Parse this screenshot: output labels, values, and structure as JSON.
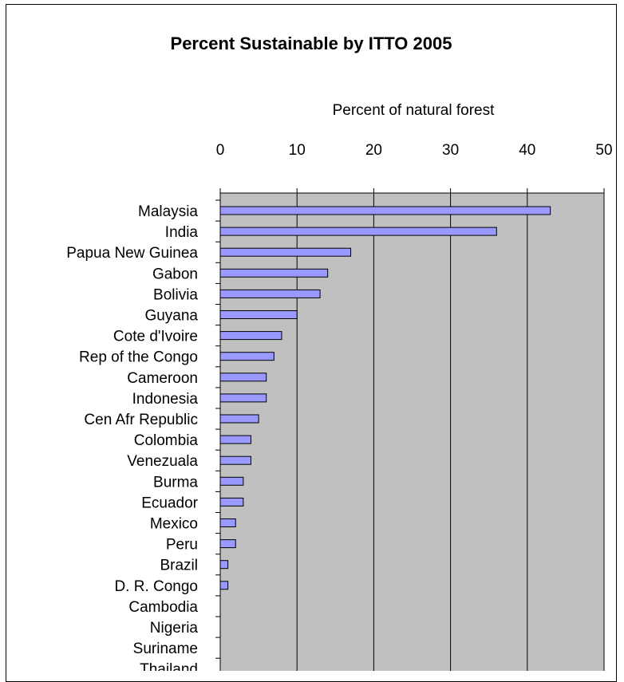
{
  "chart_data": {
    "type": "bar",
    "orientation": "horizontal",
    "title": "Percent Sustainable by ITTO 2005",
    "xlabel": "Percent of natural forest",
    "ylabel": "",
    "xlim": [
      0,
      50
    ],
    "x_ticks": [
      0,
      10,
      20,
      30,
      40,
      50
    ],
    "x_axis_position": "top",
    "grid": "vertical gridlines",
    "legend": "none",
    "categories": [
      "Malaysia",
      "India",
      "Papua New Guinea",
      "Gabon",
      "Bolivia",
      "Guyana",
      "Cote d'Ivoire",
      "Rep of the Congo",
      "Cameroon",
      "Indonesia",
      "Cen Afr Republic",
      "Colombia",
      "Venezuala",
      "Burma",
      "Ecuador",
      "Mexico",
      "Peru",
      "Brazil",
      "D. R. Congo",
      "Cambodia",
      "Nigeria",
      "Suriname",
      "Thailand"
    ],
    "values": [
      43,
      36,
      17,
      14,
      13,
      10,
      8,
      7,
      6,
      6,
      5,
      4,
      4,
      3,
      3,
      2,
      2,
      1,
      1,
      0,
      0,
      0,
      0
    ]
  },
  "colors": {
    "bar_fill": "#9999ff",
    "bar_stroke": "#000000",
    "plot_background": "#c0c0c0",
    "gridline": "#000000"
  }
}
